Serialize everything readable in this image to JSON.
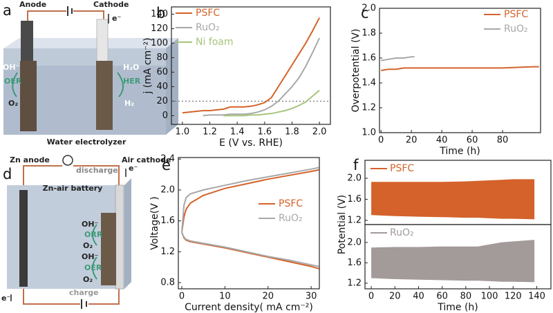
{
  "diagrams": {
    "electrolyzer": {
      "panel_label": "a",
      "anode": "Anode",
      "cathode": "Cathode",
      "electron": "e⁻",
      "anode_species": "OH⁻",
      "anode_reaction": "OER",
      "anode_product": "O₂",
      "cathode_species": "H₂O",
      "cathode_reaction": "HER",
      "cathode_product": "H₂",
      "caption": "Water electrolyzer"
    },
    "zinc_air": {
      "panel_label": "d",
      "anode": "Zn anode",
      "discharge": "discharge",
      "cathode": "Air cathode",
      "electron_top": "e⁻",
      "title": "Zn-air battery",
      "orr_species": "OH⁻",
      "orr": "ORR",
      "orr_product": "O₂",
      "oer_species": "OH⁻",
      "oer": "OER",
      "oer_product": "O₂",
      "electron_bottom": "e⁻",
      "charge": "charge"
    }
  },
  "chart_data": [
    {
      "type": "line",
      "panel_label": "b",
      "xlabel": "E (V vs. RHE)",
      "ylabel": "j (mA cm⁻²)",
      "x": [
        1.0,
        1.05,
        1.1,
        1.15,
        1.2,
        1.25,
        1.3,
        1.35,
        1.4,
        1.45,
        1.5,
        1.55,
        1.6,
        1.65,
        1.7,
        1.75,
        1.8,
        1.85,
        1.9,
        1.95,
        2.0
      ],
      "xlim": [
        0.92,
        2.08
      ],
      "xticks": [
        {
          "value": 1,
          "label": "1.0"
        },
        1.2,
        1.4,
        1.6,
        1.8,
        {
          "value": 2,
          "label": "2.0"
        }
      ],
      "ylim": [
        -12,
        150
      ],
      "yticks": [
        0,
        20,
        40,
        60,
        80,
        100,
        120,
        140
      ],
      "hline": 20,
      "legend": "upper left",
      "series": [
        {
          "name": "PSFC",
          "color": "#d4622a",
          "values": [
            4,
            5,
            6,
            7,
            7,
            8,
            9,
            12,
            12,
            12,
            13,
            15,
            18,
            25,
            40,
            55,
            70,
            85,
            100,
            117,
            135
          ]
        },
        {
          "name": "RuO₂",
          "color": "#a8a8a8",
          "values": [
            null,
            null,
            null,
            0,
            1,
            1,
            1,
            2,
            2,
            2,
            3,
            5,
            8,
            13,
            20,
            30,
            40,
            52,
            68,
            87,
            107
          ]
        },
        {
          "name": "Ni foam",
          "color": "#a7c47b",
          "values": [
            null,
            null,
            null,
            null,
            null,
            null,
            0,
            0,
            0,
            0,
            1,
            1,
            2,
            3,
            5,
            7,
            10,
            14,
            19,
            27,
            35
          ]
        }
      ]
    },
    {
      "type": "line",
      "panel_label": "c",
      "xlabel": "Time (h)",
      "ylabel": "Overpotential (V)",
      "x": [
        0,
        5,
        10,
        15,
        20,
        22,
        40,
        60,
        80,
        100,
        104
      ],
      "xlim": [
        -1,
        105
      ],
      "xticks": [
        0,
        20,
        40,
        60,
        80
      ],
      "ylim": [
        1,
        2
      ],
      "yticks": [
        {
          "value": 1,
          "label": "1.0"
        },
        1.2,
        1.4,
        1.6,
        1.8,
        {
          "value": 2,
          "label": "2.0"
        }
      ],
      "legend": "upper right",
      "series": [
        {
          "name": "PSFC",
          "color": "#d4622a",
          "values": [
            1.5,
            1.51,
            1.51,
            1.52,
            1.52,
            1.52,
            1.52,
            1.52,
            1.52,
            1.53,
            1.53
          ]
        },
        {
          "name": "RuO₂",
          "color": "#a8a8a8",
          "values": [
            1.58,
            1.59,
            1.6,
            1.6,
            1.61,
            1.61,
            null,
            null,
            null,
            null,
            null
          ]
        }
      ]
    },
    {
      "type": "line",
      "panel_label": "e",
      "xlabel": "Current density( mA cm⁻²)",
      "ylabel": "Voltage(V )",
      "x": [
        0,
        0.5,
        1,
        2,
        5,
        10,
        15,
        20,
        25,
        30,
        31.8
      ],
      "xlim": [
        -0.8,
        31.9
      ],
      "xticks": [
        0,
        10,
        20,
        30
      ],
      "ylim": [
        0.72,
        2.42
      ],
      "yticks": [
        0.8,
        1.2,
        1.6,
        {
          "value": 2,
          "label": "2.0"
        },
        2.4
      ],
      "legend": "center right",
      "series": [
        {
          "name": "PSFC",
          "color": "#d4622a",
          "values": [
            1.45,
            1.65,
            1.75,
            1.83,
            1.93,
            2.02,
            2.08,
            2.14,
            2.19,
            2.24,
            2.26
          ],
          "discharge_values": [
            1.45,
            1.38,
            1.35,
            1.33,
            1.3,
            1.25,
            1.19,
            1.13,
            1.07,
            1.01,
            0.98
          ]
        },
        {
          "name": "RuO₂",
          "color": "#a8a8a8",
          "values": [
            1.45,
            1.8,
            1.9,
            1.95,
            2.0,
            2.06,
            2.12,
            2.17,
            2.22,
            2.27,
            2.29
          ],
          "discharge_values": [
            1.45,
            1.39,
            1.36,
            1.34,
            1.31,
            1.26,
            1.2,
            1.14,
            1.09,
            1.03,
            1.01
          ]
        }
      ]
    },
    {
      "type": "band",
      "panel_label": "f",
      "xlabel": "Time (h)",
      "ylabel": "Potential (V)",
      "x": [
        0,
        20,
        40,
        60,
        80,
        90,
        100,
        110,
        120,
        138
      ],
      "xlim": [
        -5.3,
        152
      ],
      "xticks": [
        0,
        20,
        40,
        60,
        80,
        100,
        120,
        140
      ],
      "series": [
        {
          "name": "PSFC",
          "color": "#d4622a",
          "upper": [
            1.93,
            1.93,
            1.93,
            1.93,
            1.94,
            1.95,
            1.96,
            1.97,
            1.98,
            1.98
          ],
          "lower": [
            1.3,
            1.28,
            1.27,
            1.26,
            1.25,
            1.25,
            1.24,
            1.23,
            1.23,
            1.22
          ],
          "ylim": [
            1.12,
            2.34
          ],
          "yticks": [
            1.2,
            1.6,
            {
              "value": 2,
              "label": "2.0"
            }
          ]
        },
        {
          "name": "RuO₂",
          "color": "#a39a9a",
          "upper": [
            1.9,
            1.91,
            1.91,
            1.92,
            1.92,
            1.92,
            1.96,
            2.0,
            2.02,
            2.05
          ],
          "lower": [
            1.3,
            1.28,
            1.27,
            1.26,
            1.25,
            1.25,
            1.24,
            1.23,
            1.23,
            1.22
          ],
          "ylim": [
            1.09,
            2.35
          ],
          "yticks": [
            1.2,
            1.6,
            {
              "value": 2,
              "label": "2.0"
            }
          ]
        }
      ]
    }
  ]
}
